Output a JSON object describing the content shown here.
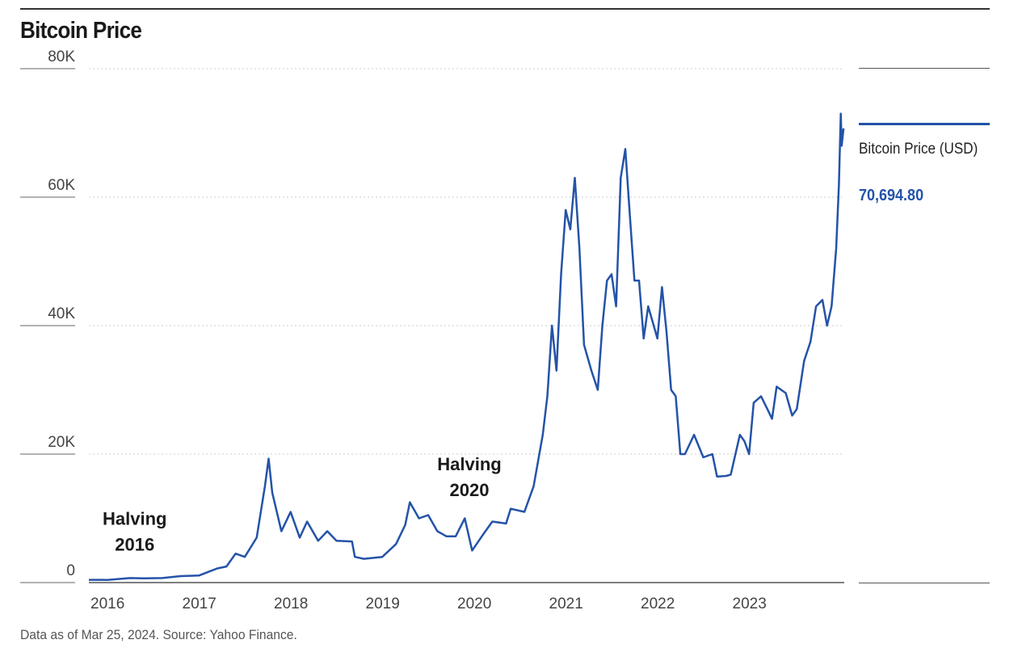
{
  "title": "Bitcoin Price",
  "footer": "Data as of Mar 25, 2024. Source: Yahoo Finance.",
  "legend": {
    "label": "Bitcoin Price (USD)",
    "value": "70,694.80",
    "color": "#2453a8"
  },
  "chart_data": {
    "type": "line",
    "title": "Bitcoin Price",
    "xlabel": "",
    "ylabel": "",
    "ylim": [
      0,
      80000
    ],
    "xlim": [
      "2016-01",
      "2024-03-25"
    ],
    "grid": true,
    "legend_placement": "right",
    "y_ticks": [
      {
        "value": 0,
        "label": "0"
      },
      {
        "value": 20000,
        "label": "20K"
      },
      {
        "value": 40000,
        "label": "40K"
      },
      {
        "value": 60000,
        "label": "60K"
      },
      {
        "value": 80000,
        "label": "80K"
      }
    ],
    "x_ticks": [
      {
        "value": 2016,
        "label": "2016"
      },
      {
        "value": 2017,
        "label": "2017"
      },
      {
        "value": 2018,
        "label": "2018"
      },
      {
        "value": 2019,
        "label": "2019"
      },
      {
        "value": 2020,
        "label": "2020"
      },
      {
        "value": 2021,
        "label": "2021"
      },
      {
        "value": 2022,
        "label": "2022"
      },
      {
        "value": 2023,
        "label": "2023"
      }
    ],
    "annotations": [
      {
        "x": 2016.5,
        "y": 9000,
        "lines": [
          "Halving",
          "2016"
        ]
      },
      {
        "x": 2020.15,
        "y": 17500,
        "lines": [
          "Halving",
          "2020"
        ]
      }
    ],
    "series": [
      {
        "name": "Bitcoin Price (USD)",
        "color": "#2453a8",
        "x": [
          2016.0,
          2016.2,
          2016.45,
          2016.6,
          2016.8,
          2017.0,
          2017.2,
          2017.4,
          2017.5,
          2017.6,
          2017.7,
          2017.83,
          2017.92,
          2017.96,
          2018.0,
          2018.1,
          2018.2,
          2018.3,
          2018.38,
          2018.5,
          2018.6,
          2018.7,
          2018.87,
          2018.9,
          2019.0,
          2019.2,
          2019.35,
          2019.45,
          2019.5,
          2019.6,
          2019.7,
          2019.8,
          2019.9,
          2020.0,
          2020.1,
          2020.18,
          2020.3,
          2020.4,
          2020.55,
          2020.6,
          2020.75,
          2020.85,
          2020.95,
          2021.0,
          2021.05,
          2021.1,
          2021.15,
          2021.2,
          2021.25,
          2021.3,
          2021.35,
          2021.4,
          2021.48,
          2021.55,
          2021.6,
          2021.65,
          2021.7,
          2021.75,
          2021.8,
          2021.85,
          2021.9,
          2021.95,
          2022.0,
          2022.05,
          2022.1,
          2022.2,
          2022.25,
          2022.3,
          2022.35,
          2022.4,
          2022.45,
          2022.5,
          2022.6,
          2022.7,
          2022.8,
          2022.85,
          2022.95,
          2023.0,
          2023.1,
          2023.15,
          2023.2,
          2023.25,
          2023.33,
          2023.4,
          2023.45,
          2023.5,
          2023.6,
          2023.67,
          2023.72,
          2023.8,
          2023.87,
          2023.93,
          2024.0,
          2024.05,
          2024.1,
          2024.15,
          2024.18,
          2024.2,
          2024.21,
          2024.23
        ],
        "y": [
          430,
          420,
          700,
          650,
          700,
          1000,
          1100,
          2200,
          2500,
          4500,
          4000,
          7000,
          15000,
          19300,
          14000,
          8000,
          11000,
          7000,
          9500,
          6500,
          8000,
          6500,
          6400,
          4000,
          3700,
          4000,
          6000,
          9000,
          12500,
          10000,
          10500,
          8000,
          7200,
          7200,
          10000,
          5000,
          7500,
          9500,
          9200,
          11500,
          11000,
          15000,
          23000,
          29000,
          40000,
          33000,
          48000,
          58000,
          55000,
          63000,
          52000,
          37000,
          33000,
          30000,
          40000,
          47000,
          48000,
          43000,
          63000,
          67500,
          57000,
          47000,
          47000,
          38000,
          43000,
          38000,
          46000,
          39000,
          30000,
          29000,
          20000,
          20000,
          23000,
          19500,
          20000,
          16500,
          16600,
          16800,
          23000,
          22000,
          20000,
          28000,
          29000,
          27000,
          25500,
          30500,
          29500,
          26000,
          27000,
          34500,
          37500,
          43000,
          44000,
          40000,
          43000,
          52000,
          62000,
          73000,
          68000,
          70700
        ]
      }
    ]
  }
}
